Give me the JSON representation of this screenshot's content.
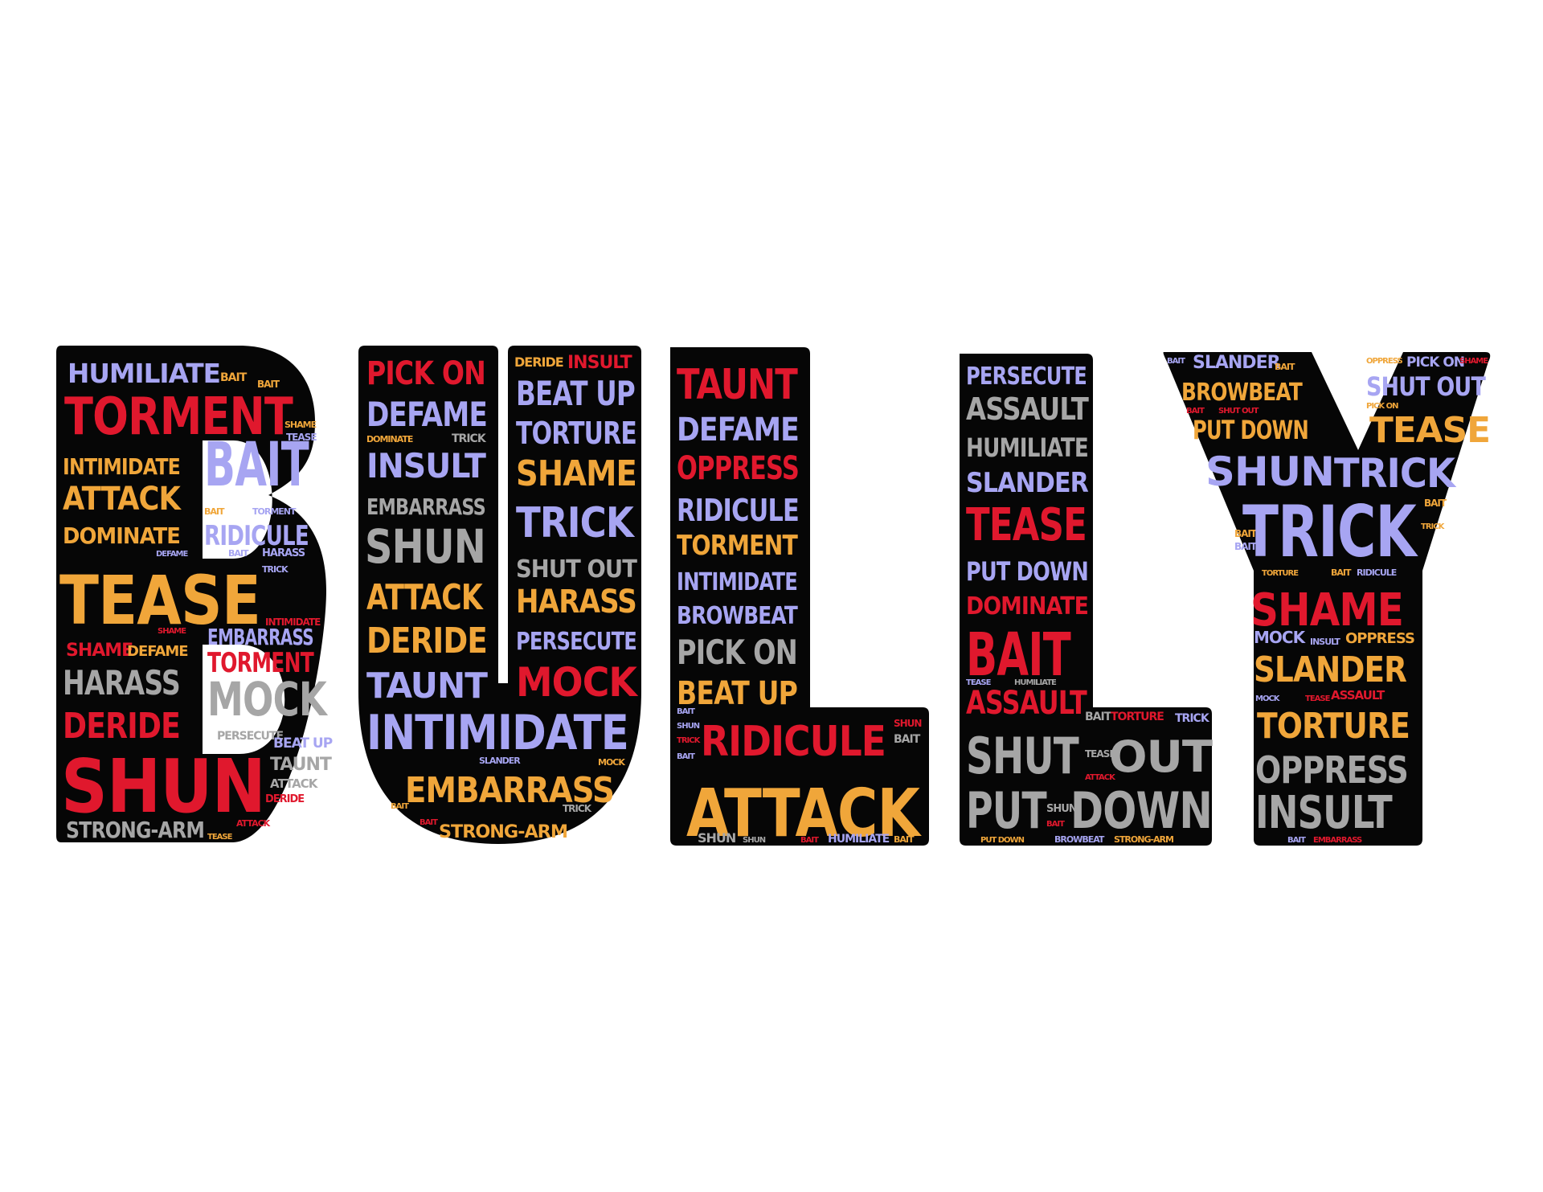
{
  "image": {
    "background_color": "#ffffff",
    "letter_fill_color": "#060606",
    "palette": {
      "purple": "#a7a5f2",
      "red": "#e0182d",
      "orange": "#f0a63a",
      "gray": "#a6a6a6"
    }
  },
  "letters": [
    {
      "glyph": "B",
      "words": [
        {
          "text": "HUMILIATE",
          "color": "purple"
        },
        {
          "text": "BAIT",
          "color": "orange"
        },
        {
          "text": "BAIT",
          "color": "orange"
        },
        {
          "text": "TORMENT",
          "color": "red"
        },
        {
          "text": "SHAME",
          "color": "orange"
        },
        {
          "text": "TEASE",
          "color": "purple"
        },
        {
          "text": "INTIMIDATE",
          "color": "orange"
        },
        {
          "text": "BAIT",
          "color": "purple"
        },
        {
          "text": "ATTACK",
          "color": "orange"
        },
        {
          "text": "BAIT",
          "color": "orange"
        },
        {
          "text": "TORMENT",
          "color": "purple"
        },
        {
          "text": "DOMINATE",
          "color": "orange"
        },
        {
          "text": "RIDICULE",
          "color": "purple"
        },
        {
          "text": "DEFAME",
          "color": "purple"
        },
        {
          "text": "BAIT",
          "color": "purple"
        },
        {
          "text": "HARASS",
          "color": "purple"
        },
        {
          "text": "TRICK",
          "color": "purple"
        },
        {
          "text": "TEASE",
          "color": "orange"
        },
        {
          "text": "SHAME",
          "color": "red"
        },
        {
          "text": "INTIMIDATE",
          "color": "red"
        },
        {
          "text": "EMBARRASS",
          "color": "purple"
        },
        {
          "text": "SHAME",
          "color": "red"
        },
        {
          "text": "DEFAME",
          "color": "orange"
        },
        {
          "text": "TORMENT",
          "color": "red"
        },
        {
          "text": "HARASS",
          "color": "gray"
        },
        {
          "text": "MOCK",
          "color": "gray"
        },
        {
          "text": "DERIDE",
          "color": "red"
        },
        {
          "text": "PERSECUTE",
          "color": "gray"
        },
        {
          "text": "BEAT UP",
          "color": "purple"
        },
        {
          "text": "SHUN",
          "color": "red"
        },
        {
          "text": "TAUNT",
          "color": "gray"
        },
        {
          "text": "ATTACK",
          "color": "gray"
        },
        {
          "text": "DERIDE",
          "color": "red"
        },
        {
          "text": "STRONG-ARM",
          "color": "gray"
        },
        {
          "text": "ATTACK",
          "color": "red"
        },
        {
          "text": "TEASE",
          "color": "orange"
        }
      ]
    },
    {
      "glyph": "U",
      "words": [
        {
          "text": "PICK ON",
          "color": "red"
        },
        {
          "text": "DERIDE",
          "color": "orange"
        },
        {
          "text": "INSULT",
          "color": "red"
        },
        {
          "text": "BEAT UP",
          "color": "purple"
        },
        {
          "text": "DEFAME",
          "color": "purple"
        },
        {
          "text": "TORTURE",
          "color": "purple"
        },
        {
          "text": "DOMINATE",
          "color": "orange"
        },
        {
          "text": "TRICK",
          "color": "gray"
        },
        {
          "text": "INSULT",
          "color": "purple"
        },
        {
          "text": "SHAME",
          "color": "orange"
        },
        {
          "text": "EMBARRASS",
          "color": "gray"
        },
        {
          "text": "TRICK",
          "color": "purple"
        },
        {
          "text": "SHUN",
          "color": "gray"
        },
        {
          "text": "SHUT OUT",
          "color": "gray"
        },
        {
          "text": "ATTACK",
          "color": "orange"
        },
        {
          "text": "HARASS",
          "color": "orange"
        },
        {
          "text": "DERIDE",
          "color": "orange"
        },
        {
          "text": "PERSECUTE",
          "color": "purple"
        },
        {
          "text": "TAUNT",
          "color": "purple"
        },
        {
          "text": "MOCK",
          "color": "red"
        },
        {
          "text": "INTIMIDATE",
          "color": "purple"
        },
        {
          "text": "SLANDER",
          "color": "purple"
        },
        {
          "text": "MOCK",
          "color": "orange"
        },
        {
          "text": "BAIT",
          "color": "orange"
        },
        {
          "text": "EMBARRASS",
          "color": "orange"
        },
        {
          "text": "BAIT",
          "color": "red"
        },
        {
          "text": "STRONG-ARM",
          "color": "orange"
        },
        {
          "text": "TRICK",
          "color": "gray"
        }
      ]
    },
    {
      "glyph": "L",
      "words": [
        {
          "text": "TAUNT",
          "color": "red"
        },
        {
          "text": "DEFAME",
          "color": "purple"
        },
        {
          "text": "OPPRESS",
          "color": "red"
        },
        {
          "text": "RIDICULE",
          "color": "purple"
        },
        {
          "text": "TORMENT",
          "color": "orange"
        },
        {
          "text": "INTIMIDATE",
          "color": "purple"
        },
        {
          "text": "BROWBEAT",
          "color": "purple"
        },
        {
          "text": "PICK ON",
          "color": "gray"
        },
        {
          "text": "BEAT UP",
          "color": "orange"
        },
        {
          "text": "BAIT",
          "color": "purple"
        },
        {
          "text": "SHUN",
          "color": "purple"
        },
        {
          "text": "TRICK",
          "color": "red"
        },
        {
          "text": "BAIT",
          "color": "purple"
        },
        {
          "text": "RIDICULE",
          "color": "red"
        },
        {
          "text": "SHUN",
          "color": "red"
        },
        {
          "text": "BAIT",
          "color": "gray"
        },
        {
          "text": "ATTACK",
          "color": "orange"
        },
        {
          "text": "SHUN",
          "color": "gray"
        },
        {
          "text": "SHUN",
          "color": "gray"
        },
        {
          "text": "BAIT",
          "color": "red"
        },
        {
          "text": "HUMILIATE",
          "color": "purple"
        },
        {
          "text": "BAIT",
          "color": "orange"
        }
      ]
    },
    {
      "glyph": "L",
      "words": [
        {
          "text": "PERSECUTE",
          "color": "purple"
        },
        {
          "text": "ASSAULT",
          "color": "gray"
        },
        {
          "text": "HUMILIATE",
          "color": "gray"
        },
        {
          "text": "SLANDER",
          "color": "purple"
        },
        {
          "text": "TEASE",
          "color": "red"
        },
        {
          "text": "PUT DOWN",
          "color": "purple"
        },
        {
          "text": "DOMINATE",
          "color": "red"
        },
        {
          "text": "BAIT",
          "color": "red"
        },
        {
          "text": "TEASE",
          "color": "purple"
        },
        {
          "text": "HUMILIATE",
          "color": "gray"
        },
        {
          "text": "ASSAULT",
          "color": "red"
        },
        {
          "text": "BAIT",
          "color": "gray"
        },
        {
          "text": "TORTURE",
          "color": "red"
        },
        {
          "text": "TRICK",
          "color": "purple"
        },
        {
          "text": "SHUT",
          "color": "gray"
        },
        {
          "text": "TEASE",
          "color": "gray"
        },
        {
          "text": "OUT",
          "color": "gray"
        },
        {
          "text": "ATTACK",
          "color": "red"
        },
        {
          "text": "PUT",
          "color": "gray"
        },
        {
          "text": "SHUN",
          "color": "gray"
        },
        {
          "text": "DOWN",
          "color": "gray"
        },
        {
          "text": "BAIT",
          "color": "red"
        },
        {
          "text": "PUT DOWN",
          "color": "orange"
        },
        {
          "text": "BROWBEAT",
          "color": "purple"
        },
        {
          "text": "STRONG-ARM",
          "color": "orange"
        }
      ]
    },
    {
      "glyph": "Y",
      "words": [
        {
          "text": "BAIT",
          "color": "purple"
        },
        {
          "text": "SLANDER",
          "color": "purple"
        },
        {
          "text": "BAIT",
          "color": "orange"
        },
        {
          "text": "OPPRESS",
          "color": "orange"
        },
        {
          "text": "PICK ON",
          "color": "purple"
        },
        {
          "text": "SHAME",
          "color": "red"
        },
        {
          "text": "BROWBEAT",
          "color": "orange"
        },
        {
          "text": "SHUT OUT",
          "color": "purple"
        },
        {
          "text": "BAIT",
          "color": "red"
        },
        {
          "text": "SHUT OUT",
          "color": "red"
        },
        {
          "text": "PICK ON",
          "color": "orange"
        },
        {
          "text": "PUT DOWN",
          "color": "orange"
        },
        {
          "text": "TEASE",
          "color": "orange"
        },
        {
          "text": "SHUN",
          "color": "purple"
        },
        {
          "text": "TRICK",
          "color": "purple"
        },
        {
          "text": "BAIT",
          "color": "orange"
        },
        {
          "text": "BAIT",
          "color": "orange"
        },
        {
          "text": "TRICK",
          "color": "purple"
        },
        {
          "text": "TRICK",
          "color": "orange"
        },
        {
          "text": "BAIT",
          "color": "purple"
        },
        {
          "text": "TORTURE",
          "color": "orange"
        },
        {
          "text": "BAIT",
          "color": "orange"
        },
        {
          "text": "RIDICULE",
          "color": "purple"
        },
        {
          "text": "SHAME",
          "color": "red"
        },
        {
          "text": "MOCK",
          "color": "purple"
        },
        {
          "text": "INSULT",
          "color": "purple"
        },
        {
          "text": "OPPRESS",
          "color": "orange"
        },
        {
          "text": "SLANDER",
          "color": "orange"
        },
        {
          "text": "MOCK",
          "color": "purple"
        },
        {
          "text": "TEASE",
          "color": "red"
        },
        {
          "text": "ASSAULT",
          "color": "red"
        },
        {
          "text": "TORTURE",
          "color": "orange"
        },
        {
          "text": "OPPRESS",
          "color": "gray"
        },
        {
          "text": "INSULT",
          "color": "gray"
        },
        {
          "text": "BAIT",
          "color": "purple"
        },
        {
          "text": "EMBARRASS",
          "color": "red"
        }
      ]
    }
  ]
}
